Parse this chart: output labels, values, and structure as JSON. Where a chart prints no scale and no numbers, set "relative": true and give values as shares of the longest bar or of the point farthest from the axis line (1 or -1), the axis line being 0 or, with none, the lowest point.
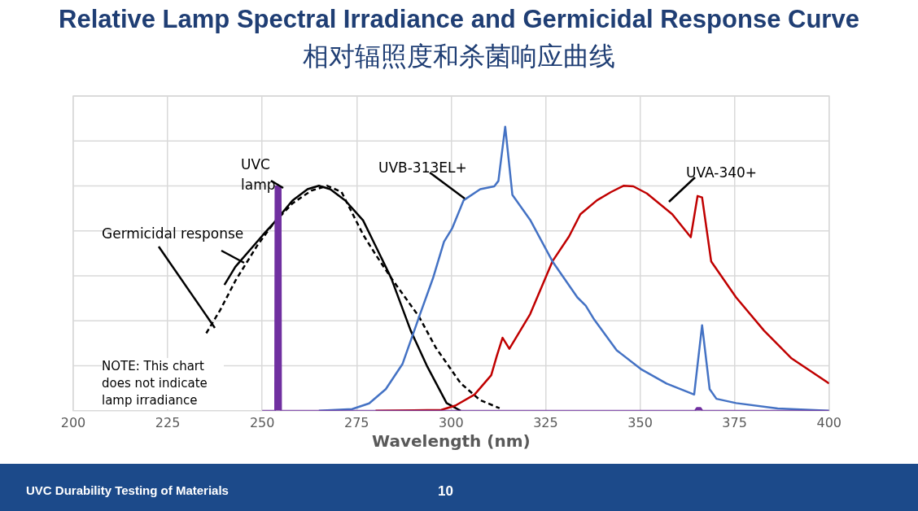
{
  "chart_data": {
    "type": "line",
    "title": "Relative Lamp Spectral Irradiance and Germicidal Response Curve",
    "subtitle": "相对辐照度和杀菌响应曲线",
    "xlabel": "Wavelength (nm)",
    "xlim": [
      200,
      400
    ],
    "xticks": [
      200,
      225,
      250,
      275,
      300,
      325,
      350,
      375,
      400
    ],
    "relative": true,
    "grid": true,
    "legend": false,
    "marker": "none",
    "annotations": [
      "NOTE: This chart does not indicate lamp irradiance",
      "UVC Durability Testing of Materials",
      "10"
    ],
    "series": [
      {
        "name": "UVC lamp",
        "type": "area",
        "color": "#7030a0",
        "x": [
          250,
          253.4,
          253.5,
          254.9,
          255,
          364.5,
          365,
          366,
          366.5,
          400
        ],
        "values": [
          0,
          0,
          0.79,
          0.79,
          0,
          0,
          0.01,
          0.01,
          0,
          0
        ]
      },
      {
        "name": "UVB-313EL+",
        "color": "#4472c4",
        "x": [
          265,
          273.8,
          278.3,
          282.7,
          287.1,
          291.5,
          295.2,
          298.1,
          300.3,
          303.3,
          307.7,
          311.4,
          312.5,
          314.3,
          316.2,
          320.9,
          326.8,
          333.4,
          335.6,
          337.9,
          343.8,
          350.4,
          357,
          364.3,
          366.4,
          368.4,
          370.2,
          375.4,
          386.4,
          400
        ],
        "values": [
          0,
          0.006,
          0.026,
          0.076,
          0.164,
          0.33,
          0.467,
          0.595,
          0.643,
          0.741,
          0.78,
          0.79,
          0.809,
          1,
          0.76,
          0.672,
          0.526,
          0.399,
          0.37,
          0.32,
          0.213,
          0.145,
          0.096,
          0.057,
          0.301,
          0.076,
          0.042,
          0.027,
          0.008,
          0
        ]
      },
      {
        "name": "UVA-340+",
        "color": "#c00000",
        "x": [
          280,
          297.4,
          301.1,
          306.2,
          310.6,
          312.1,
          313.6,
          315.4,
          320.9,
          326.8,
          331.2,
          334.2,
          338.6,
          342.3,
          345.6,
          348.2,
          351.8,
          358.5,
          363.4,
          365.2,
          366.4,
          368.8,
          375.4,
          382.8,
          390.1,
          400
        ],
        "values": [
          0,
          0.003,
          0.018,
          0.057,
          0.125,
          0.194,
          0.257,
          0.218,
          0.34,
          0.526,
          0.614,
          0.692,
          0.741,
          0.77,
          0.792,
          0.79,
          0.765,
          0.692,
          0.611,
          0.756,
          0.751,
          0.526,
          0.399,
          0.282,
          0.184,
          0.096
        ]
      },
      {
        "name": "Germicidal response",
        "color": "#000000",
        "x": [
          240,
          242.9,
          250.2,
          253.2,
          258,
          262,
          265,
          268,
          272,
          276.7,
          280,
          284.1,
          289.3,
          293.7,
          298.8,
          302.5
        ],
        "values": [
          0.443,
          0.507,
          0.619,
          0.663,
          0.74,
          0.78,
          0.792,
          0.78,
          0.74,
          0.67,
          0.58,
          0.468,
          0.282,
          0.155,
          0.027,
          0
        ]
      },
      {
        "color": "#000000",
        "line_style": "dashed",
        "x": [
          235.2,
          238.9,
          243,
          248.8,
          253.2,
          258,
          263,
          267.2,
          271,
          276.7,
          280,
          284.1,
          291.5,
          295.9,
          302.5,
          307.6,
          312.8
        ],
        "values": [
          0.273,
          0.355,
          0.46,
          0.584,
          0.663,
          0.73,
          0.775,
          0.792,
          0.77,
          0.62,
          0.55,
          0.468,
          0.331,
          0.223,
          0.097,
          0.038,
          0.009
        ]
      }
    ]
  }
}
